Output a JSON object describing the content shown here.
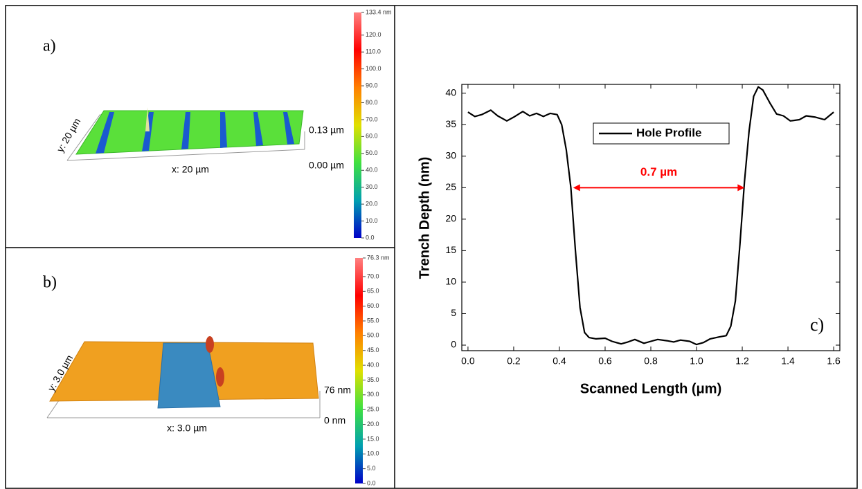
{
  "chart_data": [
    {
      "type": "surface",
      "panel_label": "a)",
      "x_label": "x: 20 µm",
      "y_label": "y: 20 µm",
      "z_labels": [
        "0.13 µm",
        "0.00 µm"
      ],
      "clim": [
        0,
        133.4
      ],
      "colormap": [
        "#0000c8",
        "#00a0b0",
        "#40e040",
        "#e0e000",
        "#ff8000",
        "#ff0000",
        "#ff8080"
      ],
      "cticks": [
        {
          "value": 0,
          "label": "0.0"
        },
        {
          "value": 10,
          "label": "10.0"
        },
        {
          "value": 20,
          "label": "20.0"
        },
        {
          "value": 30,
          "label": "30.0"
        },
        {
          "value": 40,
          "label": "40.0"
        },
        {
          "value": 50,
          "label": "50.0"
        },
        {
          "value": 60,
          "label": "60.0"
        },
        {
          "value": 70,
          "label": "70.0"
        },
        {
          "value": 80,
          "label": "80.0"
        },
        {
          "value": 90,
          "label": "90.0"
        },
        {
          "value": 100,
          "label": "100.0"
        },
        {
          "value": 110,
          "label": "110.0"
        },
        {
          "value": 120,
          "label": "120.0"
        },
        {
          "value": 133.4,
          "label": "133.4 nm"
        }
      ]
    },
    {
      "type": "surface",
      "panel_label": "b)",
      "x_label": "x: 3.0 µm",
      "y_label": "y: 3.0 µm",
      "z_labels": [
        "76 nm",
        "0 nm"
      ],
      "clim": [
        0,
        76.3
      ],
      "colormap": [
        "#0000c8",
        "#00a0b0",
        "#40e040",
        "#e0e000",
        "#ff8000",
        "#ff0000",
        "#ff8080"
      ],
      "cticks": [
        {
          "value": 0,
          "label": "0.0"
        },
        {
          "value": 5,
          "label": "5.0"
        },
        {
          "value": 10,
          "label": "10.0"
        },
        {
          "value": 15,
          "label": "15.0"
        },
        {
          "value": 20,
          "label": "20.0"
        },
        {
          "value": 25,
          "label": "25.0"
        },
        {
          "value": 30,
          "label": "30.0"
        },
        {
          "value": 35,
          "label": "35.0"
        },
        {
          "value": 40,
          "label": "40.0"
        },
        {
          "value": 45,
          "label": "45.0"
        },
        {
          "value": 50,
          "label": "50.0"
        },
        {
          "value": 55,
          "label": "55.0"
        },
        {
          "value": 60,
          "label": "60.0"
        },
        {
          "value": 65,
          "label": "65.0"
        },
        {
          "value": 70,
          "label": "70.0"
        },
        {
          "value": 76.3,
          "label": "76.3 nm"
        }
      ]
    },
    {
      "type": "line",
      "panel_label": "c)",
      "x_label": "Scanned Length (μm)",
      "y_label": "Trench Depth (nm)",
      "x": [
        0.0,
        0.03,
        0.06,
        0.1,
        0.13,
        0.17,
        0.2,
        0.24,
        0.27,
        0.3,
        0.33,
        0.36,
        0.39,
        0.41,
        0.43,
        0.45,
        0.47,
        0.49,
        0.51,
        0.53,
        0.56,
        0.6,
        0.63,
        0.67,
        0.7,
        0.73,
        0.77,
        0.8,
        0.83,
        0.87,
        0.9,
        0.93,
        0.97,
        1.0,
        1.03,
        1.06,
        1.1,
        1.13,
        1.15,
        1.17,
        1.19,
        1.21,
        1.23,
        1.25,
        1.27,
        1.29,
        1.32,
        1.35,
        1.38,
        1.41,
        1.45,
        1.48,
        1.52,
        1.56,
        1.6
      ],
      "series": [
        {
          "name": "Hole Profile",
          "color": "#000000",
          "values": [
            37,
            36.3,
            36.6,
            37.3,
            36.4,
            35.6,
            36.2,
            37.1,
            36.4,
            36.8,
            36.3,
            36.8,
            36.6,
            35,
            31,
            25,
            15,
            6,
            2,
            1.2,
            1,
            1.1,
            0.6,
            0.2,
            0.5,
            0.9,
            0.3,
            0.6,
            0.9,
            0.7,
            0.5,
            0.8,
            0.6,
            0.1,
            0.4,
            1,
            1.3,
            1.5,
            3,
            7,
            16,
            26,
            34,
            39.5,
            41,
            40.5,
            38.5,
            36.7,
            36.4,
            35.6,
            35.8,
            36.4,
            36.2,
            35.8,
            37
          ]
        }
      ],
      "xlim": [
        -0.027,
        1.627
      ],
      "ylim": [
        -0.88,
        41.4
      ],
      "xticks": [
        {
          "value": 0,
          "label": "0.0"
        },
        {
          "value": 0.2,
          "label": "0.2"
        },
        {
          "value": 0.4,
          "label": "0.4"
        },
        {
          "value": 0.6,
          "label": "0.6"
        },
        {
          "value": 0.8,
          "label": "0.8"
        },
        {
          "value": 1,
          "label": "1.0"
        },
        {
          "value": 1.2,
          "label": "1.2"
        },
        {
          "value": 1.4,
          "label": "1.4"
        },
        {
          "value": 1.6,
          "label": "1.6"
        }
      ],
      "yticks": [
        0,
        5,
        10,
        15,
        20,
        25,
        30,
        35,
        40
      ],
      "legend": "upper center",
      "annotation": {
        "x": [
          0.46,
          1.21
        ],
        "y": 25,
        "label": "0.7 µm",
        "color": "#ff0000"
      }
    }
  ]
}
